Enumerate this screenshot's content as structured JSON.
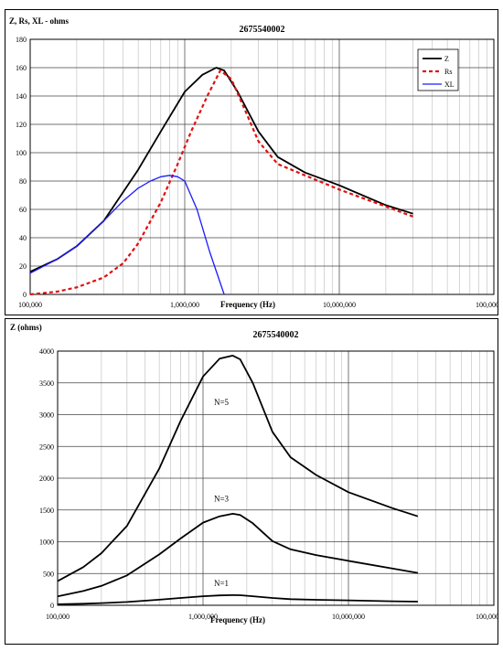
{
  "chart_data": [
    {
      "type": "line",
      "title": "2675540002",
      "ylabel": "Z, Rs, XL - ohms",
      "xlabel": "Frequency (Hz)",
      "xscale": "log",
      "xlim": [
        100000,
        100000000
      ],
      "ylim": [
        0,
        180
      ],
      "yticks": [
        0,
        20,
        40,
        60,
        80,
        100,
        120,
        140,
        160,
        180
      ],
      "ytick_labels": [
        "0",
        "20",
        "40",
        "60",
        "80",
        "100",
        "120",
        "140",
        "160",
        "180"
      ],
      "xticks": [
        100000,
        1000000,
        10000000,
        100000000
      ],
      "xtick_labels": [
        "100,000",
        "1,000,000",
        "10,000,000",
        "100,000,000"
      ],
      "grid": true,
      "legend_position": "top-right",
      "series": [
        {
          "name": "Z",
          "color": "#000000",
          "style": "solid",
          "x": [
            100000,
            150000,
            200000,
            300000,
            500000,
            700000,
            1000000,
            1300000,
            1600000,
            1800000,
            2200000,
            3000000,
            4000000,
            6000000,
            10000000,
            20000000,
            30000000
          ],
          "y": [
            16,
            25,
            34,
            52,
            88,
            115,
            143,
            155,
            160,
            158,
            143,
            115,
            97,
            86,
            77,
            63,
            57
          ]
        },
        {
          "name": "Rs",
          "color": "#e01010",
          "style": "dashed",
          "x": [
            100000,
            150000,
            200000,
            300000,
            400000,
            500000,
            700000,
            900000,
            1100000,
            1400000,
            1700000,
            2000000,
            2500000,
            3000000,
            4000000,
            6000000,
            10000000,
            20000000,
            30000000
          ],
          "y": [
            0,
            2,
            5,
            12,
            22,
            36,
            65,
            92,
            115,
            140,
            158,
            152,
            128,
            108,
            92,
            84,
            74,
            62,
            55
          ]
        },
        {
          "name": "XL",
          "color": "#1a1aff",
          "style": "solid",
          "x": [
            100000,
            150000,
            200000,
            300000,
            400000,
            500000,
            600000,
            700000,
            800000,
            900000,
            1000000,
            1200000,
            1450000,
            1800000
          ],
          "y": [
            15,
            25,
            34,
            52,
            66,
            75,
            80,
            83,
            84,
            83,
            80,
            60,
            30,
            0
          ]
        }
      ]
    },
    {
      "type": "line",
      "title": "2675540002",
      "ylabel": "Z (ohms)",
      "xlabel": "Frequency (Hz)",
      "xscale": "log",
      "xlim": [
        100000,
        100000000
      ],
      "ylim": [
        0,
        4000
      ],
      "yticks": [
        0,
        500,
        1000,
        1500,
        2000,
        2500,
        3000,
        3500,
        4000
      ],
      "ytick_labels": [
        "0",
        "500",
        "1000",
        "1500",
        "2000",
        "2500",
        "3000",
        "3500",
        "4000"
      ],
      "xticks": [
        100000,
        1000000,
        10000000,
        100000000
      ],
      "xtick_labels": [
        "100,000",
        "1,000,000",
        "10,000,000",
        "100,000,000"
      ],
      "grid": true,
      "series": [
        {
          "label": "N=5",
          "color": "#000000",
          "label_at": [
            1000000,
            3150
          ],
          "x": [
            100000,
            150000,
            200000,
            300000,
            500000,
            700000,
            1000000,
            1300000,
            1600000,
            1800000,
            2200000,
            3000000,
            4000000,
            6000000,
            10000000,
            20000000,
            30000000
          ],
          "y": [
            380,
            600,
            820,
            1250,
            2150,
            2900,
            3600,
            3880,
            3930,
            3870,
            3500,
            2730,
            2330,
            2050,
            1780,
            1530,
            1400
          ]
        },
        {
          "label": "N=3",
          "color": "#000000",
          "label_at": [
            1000000,
            1630
          ],
          "x": [
            100000,
            150000,
            200000,
            300000,
            500000,
            700000,
            1000000,
            1300000,
            1600000,
            1800000,
            2200000,
            3000000,
            4000000,
            6000000,
            10000000,
            20000000,
            30000000
          ],
          "y": [
            140,
            225,
            305,
            470,
            800,
            1050,
            1300,
            1400,
            1440,
            1420,
            1290,
            1010,
            880,
            790,
            700,
            580,
            510
          ]
        },
        {
          "label": "N=1",
          "color": "#000000",
          "label_at": [
            1000000,
            300
          ],
          "x": [
            100000,
            150000,
            200000,
            300000,
            500000,
            700000,
            1000000,
            1300000,
            1600000,
            1800000,
            2200000,
            3000000,
            4000000,
            6000000,
            10000000,
            20000000,
            30000000
          ],
          "y": [
            16,
            25,
            34,
            52,
            88,
            115,
            143,
            155,
            160,
            158,
            143,
            115,
            97,
            86,
            77,
            63,
            57
          ]
        }
      ]
    }
  ]
}
